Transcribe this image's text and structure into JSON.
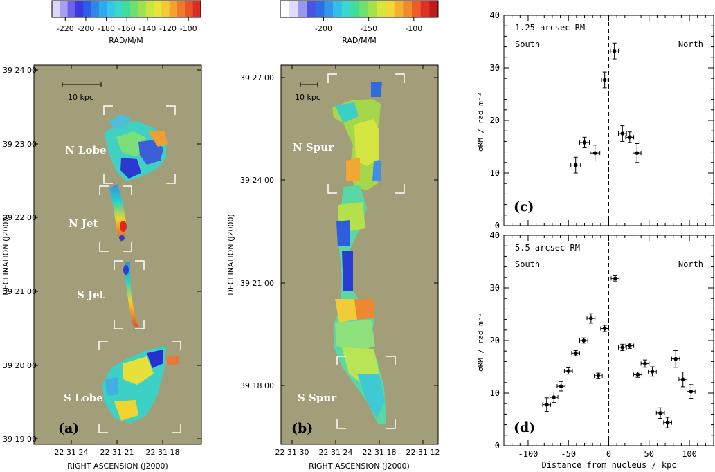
{
  "colorbar_a": {
    "ticks": [
      "-220",
      "-200",
      "-180",
      "-160",
      "-140",
      "-120",
      "-100"
    ],
    "values": [
      -220,
      -200,
      -180,
      -160,
      -140,
      -120,
      -100
    ],
    "range": [
      -233,
      -88
    ],
    "label": "RAD/M/M"
  },
  "colorbar_b": {
    "ticks": [
      "-200",
      "-150",
      "-100"
    ],
    "values": [
      -200,
      -150,
      -100
    ],
    "range": [
      -248,
      -73
    ],
    "label": "RAD/M/M"
  },
  "panel_a": {
    "tag": "(a)",
    "scalebar": "10 kpc",
    "regions": [
      "N Lobe",
      "N Jet",
      "S Jet",
      "S Lobe"
    ],
    "xlabel": "RIGHT ASCENSION  (J2000)",
    "ylabel": "DECLINATION  (J2000)",
    "xticks": [
      "22 31 24",
      "22 31 21",
      "22 31 18"
    ],
    "yticks": [
      "39 24 00",
      "39 23 00",
      "39 22 00",
      "39 21 00",
      "39 20 00",
      "39 19 00"
    ]
  },
  "panel_b": {
    "tag": "(b)",
    "scalebar": "10 kpc",
    "regions": [
      "N Spur",
      "S Spur"
    ],
    "xlabel": "RIGHT ASCENSION  (J2000)",
    "ylabel": "DECLINATION  (J2000)",
    "xticks": [
      "22 31 30",
      "22 31 24",
      "22 31 18",
      "22 31 12"
    ],
    "yticks": [
      "39 27 00",
      "39 24 00",
      "39 21 00",
      "39 18 00"
    ]
  },
  "colors": {
    "background_map": "#a29e7a",
    "bracket": "#ffffff"
  },
  "chart_data": [
    {
      "type": "scatter",
      "panel": "(c)",
      "annotation": "1.25-arcsec RM",
      "left_label": "South",
      "right_label": "North",
      "ylabel": "σRM / rad m⁻²",
      "xlim": [
        -130,
        130
      ],
      "ylim": [
        0,
        40
      ],
      "yticks": [
        0,
        10,
        20,
        30,
        40
      ],
      "divider_x": 0,
      "points": [
        {
          "x": -41,
          "y": 11.5,
          "xerr": 6,
          "yerr": 1.5
        },
        {
          "x": -30,
          "y": 15.8,
          "xerr": 6,
          "yerr": 1.0
        },
        {
          "x": -17,
          "y": 13.8,
          "xerr": 6,
          "yerr": 1.5
        },
        {
          "x": -5,
          "y": 27.7,
          "xerr": 4,
          "yerr": 1.5
        },
        {
          "x": 7,
          "y": 33.2,
          "xerr": 5,
          "yerr": 1.5
        },
        {
          "x": 17,
          "y": 17.5,
          "xerr": 5,
          "yerr": 1.5
        },
        {
          "x": 26,
          "y": 16.8,
          "xerr": 5,
          "yerr": 1.0
        },
        {
          "x": 35,
          "y": 13.8,
          "xerr": 5,
          "yerr": 1.8
        }
      ]
    },
    {
      "type": "scatter",
      "panel": "(d)",
      "annotation": "5.5-arcsec RM",
      "left_label": "South",
      "right_label": "North",
      "xlabel": "Distance from nucleus / kpc",
      "ylabel": "σRM / rad m⁻²",
      "xlim": [
        -130,
        130
      ],
      "ylim": [
        0,
        40
      ],
      "xticks": [
        -100,
        -50,
        0,
        50,
        100
      ],
      "yticks": [
        0,
        10,
        20,
        30,
        40
      ],
      "divider_x": 0,
      "points": [
        {
          "x": -77,
          "y": 7.8,
          "xerr": 5,
          "yerr": 1.3
        },
        {
          "x": -68,
          "y": 9.2,
          "xerr": 5,
          "yerr": 1.0
        },
        {
          "x": -59,
          "y": 11.3,
          "xerr": 5,
          "yerr": 0.9
        },
        {
          "x": -50,
          "y": 14.2,
          "xerr": 5,
          "yerr": 0.6
        },
        {
          "x": -41,
          "y": 17.6,
          "xerr": 5,
          "yerr": 0.5
        },
        {
          "x": -31,
          "y": 20.0,
          "xerr": 5,
          "yerr": 0.5
        },
        {
          "x": -22,
          "y": 24.2,
          "xerr": 5,
          "yerr": 0.9
        },
        {
          "x": -13,
          "y": 13.3,
          "xerr": 5,
          "yerr": 0.5
        },
        {
          "x": -5,
          "y": 22.3,
          "xerr": 5,
          "yerr": 0.6
        },
        {
          "x": 8,
          "y": 31.8,
          "xerr": 5,
          "yerr": 0.5
        },
        {
          "x": 17,
          "y": 18.7,
          "xerr": 5,
          "yerr": 0.6
        },
        {
          "x": 26,
          "y": 19.0,
          "xerr": 5,
          "yerr": 0.5
        },
        {
          "x": 36,
          "y": 13.5,
          "xerr": 5,
          "yerr": 0.5
        },
        {
          "x": 45,
          "y": 15.6,
          "xerr": 5,
          "yerr": 0.7
        },
        {
          "x": 54,
          "y": 14.1,
          "xerr": 5,
          "yerr": 0.9
        },
        {
          "x": 64,
          "y": 6.2,
          "xerr": 5,
          "yerr": 1.0
        },
        {
          "x": 73,
          "y": 4.4,
          "xerr": 5,
          "yerr": 1.0
        },
        {
          "x": 83,
          "y": 16.5,
          "xerr": 5,
          "yerr": 1.6
        },
        {
          "x": 92,
          "y": 12.6,
          "xerr": 5,
          "yerr": 1.4
        },
        {
          "x": 102,
          "y": 10.3,
          "xerr": 5,
          "yerr": 1.3
        }
      ]
    }
  ]
}
